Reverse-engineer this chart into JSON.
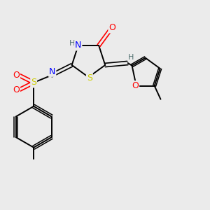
{
  "bg_color": "#ebebeb",
  "atom_colors": {
    "C": "#000000",
    "N": "#0000ff",
    "O": "#ff0000",
    "S": "#cccc00",
    "H": "#507070"
  },
  "bond_color": "#000000",
  "figsize": [
    3.0,
    3.0
  ],
  "dpi": 100
}
